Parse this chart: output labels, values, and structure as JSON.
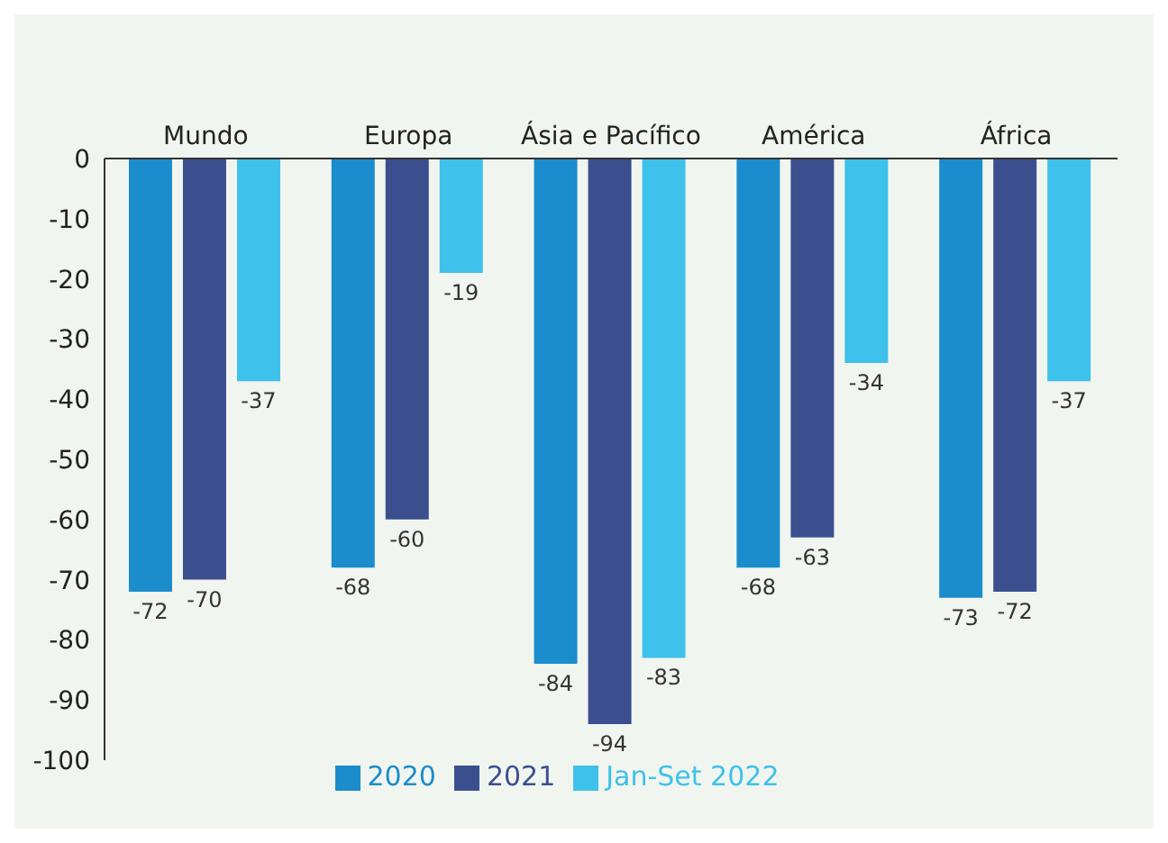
{
  "chart_data": {
    "type": "bar",
    "categories": [
      "Mundo",
      "Europa",
      "Ásia e Pacífico",
      "América",
      "África"
    ],
    "series": [
      {
        "name": "2020",
        "color": "#1b8ccc",
        "values": [
          -72,
          -68,
          -84,
          -68,
          -73
        ]
      },
      {
        "name": "2021",
        "color": "#3b4f8f",
        "values": [
          -70,
          -60,
          -94,
          -63,
          -72
        ]
      },
      {
        "name": "Jan-Set 2022",
        "color": "#3ec1ea",
        "values": [
          -37,
          -19,
          -83,
          -34,
          -37
        ]
      }
    ],
    "ylim": [
      -100,
      0
    ],
    "yticks": [
      0,
      -10,
      -20,
      -30,
      -40,
      -50,
      -60,
      -70,
      -80,
      -90,
      -100
    ],
    "grid": false,
    "legend": "bottom",
    "data_labels": true
  }
}
